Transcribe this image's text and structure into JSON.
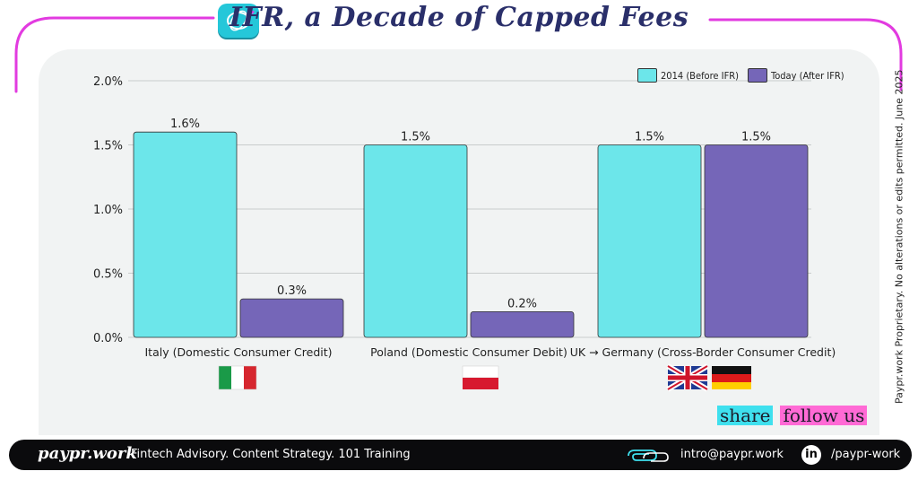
{
  "header": {
    "title": "IFR, a Decade of Capped Fees"
  },
  "side_note": "Paypr.work Proprietary. No alterations or edits permitted. June 2025",
  "actions": {
    "share": "share",
    "follow": "follow us"
  },
  "footer": {
    "brand": "paypr.work",
    "tagline": "Fintech Advisory. Content Strategy. 101 Training",
    "email": "intro@paypr.work",
    "linkedin": "/paypr-work",
    "linkedin_icon": "in"
  },
  "colors": {
    "accent_magenta": "#e23be0",
    "before": "#6ce6ea",
    "after": "#7566b8"
  },
  "chart_data": {
    "type": "bar",
    "categories": [
      "Italy (Domestic Consumer Credit)",
      "Poland (Domestic Consumer Debit)",
      "UK → Germany (Cross-Border Consumer Credit)"
    ],
    "series": [
      {
        "name": "2014 (Before IFR)",
        "values": [
          1.6,
          1.5,
          1.5
        ],
        "labels": [
          "1.6%",
          "1.5%",
          "1.5%"
        ]
      },
      {
        "name": "Today  (After IFR)",
        "values": [
          0.3,
          0.2,
          1.5
        ],
        "labels": [
          "0.3%",
          "0.2%",
          "1.5%"
        ]
      }
    ],
    "yticks": [
      0.0,
      0.5,
      1.0,
      1.5,
      2.0
    ],
    "ytick_labels": [
      "0.0%",
      "0.5%",
      "1.0%",
      "1.5%",
      "2.0%"
    ],
    "ylim": [
      0,
      2.0
    ],
    "grid": true,
    "legend_position": "top-right",
    "flags": [
      "italy-flag",
      "poland-flag",
      "uk-flag-and-germany-flag"
    ]
  }
}
